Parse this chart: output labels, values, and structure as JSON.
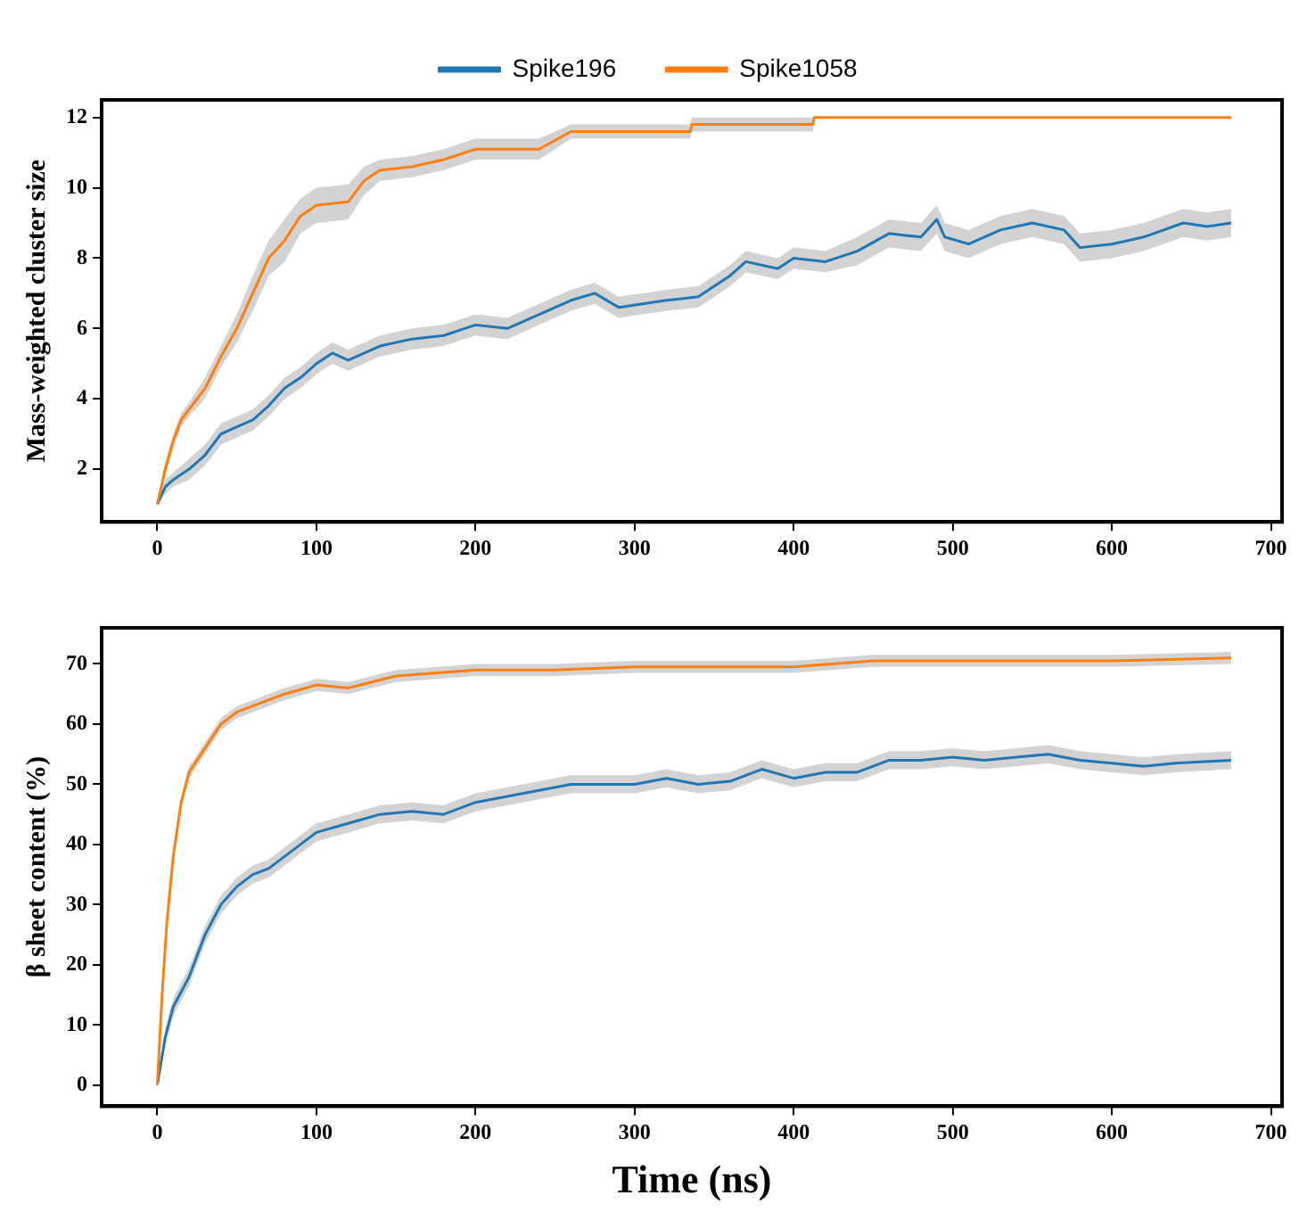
{
  "chart_data": [
    {
      "type": "line",
      "ylabel": "Mass-weighted cluster size",
      "legend": "top",
      "xlim": [
        -35,
        707
      ],
      "xticks": [
        0,
        100,
        200,
        300,
        400,
        500,
        600,
        700
      ],
      "ylim": [
        0.5,
        12.5
      ],
      "yticks": [
        2,
        4,
        6,
        8,
        10,
        12
      ],
      "series": [
        {
          "name": "Spike196",
          "color": "#1f77b4",
          "x": [
            0,
            5,
            10,
            20,
            30,
            40,
            50,
            60,
            70,
            80,
            90,
            100,
            110,
            120,
            140,
            160,
            180,
            200,
            220,
            240,
            260,
            275,
            290,
            320,
            340,
            360,
            370,
            390,
            400,
            420,
            440,
            460,
            480,
            490,
            495,
            510,
            530,
            550,
            570,
            580,
            600,
            620,
            645,
            660,
            675
          ],
          "values": [
            1,
            1.5,
            1.7,
            2.0,
            2.4,
            3.0,
            3.2,
            3.4,
            3.8,
            4.3,
            4.6,
            5.0,
            5.3,
            5.1,
            5.5,
            5.7,
            5.8,
            6.1,
            6.0,
            6.4,
            6.8,
            7.0,
            6.6,
            6.8,
            6.9,
            7.5,
            7.9,
            7.7,
            8.0,
            7.9,
            8.2,
            8.7,
            8.6,
            9.1,
            8.6,
            8.4,
            8.8,
            9.0,
            8.8,
            8.3,
            8.4,
            8.6,
            9.0,
            8.9,
            9.0
          ],
          "lower": [
            1,
            1.3,
            1.5,
            1.7,
            2.1,
            2.7,
            2.9,
            3.1,
            3.5,
            4.0,
            4.3,
            4.7,
            5.0,
            4.8,
            5.2,
            5.4,
            5.5,
            5.8,
            5.7,
            6.1,
            6.5,
            6.7,
            6.3,
            6.5,
            6.6,
            7.2,
            7.6,
            7.4,
            7.7,
            7.6,
            7.8,
            8.3,
            8.2,
            8.7,
            8.2,
            8.0,
            8.4,
            8.6,
            8.4,
            7.9,
            8.0,
            8.2,
            8.6,
            8.5,
            8.6
          ],
          "upper": [
            1,
            1.7,
            1.9,
            2.3,
            2.7,
            3.3,
            3.5,
            3.7,
            4.1,
            4.6,
            4.9,
            5.3,
            5.6,
            5.4,
            5.8,
            6.0,
            6.1,
            6.4,
            6.3,
            6.7,
            7.1,
            7.3,
            6.9,
            7.1,
            7.2,
            7.8,
            8.2,
            8.0,
            8.3,
            8.2,
            8.6,
            9.1,
            9.0,
            9.5,
            9.0,
            8.8,
            9.2,
            9.4,
            9.2,
            8.7,
            8.8,
            9.0,
            9.4,
            9.3,
            9.4
          ]
        },
        {
          "name": "Spike1058",
          "color": "#ff7f0e",
          "x": [
            0,
            5,
            10,
            15,
            20,
            30,
            40,
            50,
            60,
            70,
            80,
            90,
            100,
            120,
            130,
            140,
            160,
            180,
            200,
            240,
            260,
            335,
            336,
            412,
            413,
            675
          ],
          "values": [
            1,
            2.0,
            2.8,
            3.4,
            3.7,
            4.3,
            5.2,
            6.0,
            7.0,
            8.0,
            8.5,
            9.2,
            9.5,
            9.6,
            10.2,
            10.5,
            10.6,
            10.8,
            11.1,
            11.1,
            11.6,
            11.6,
            11.8,
            11.8,
            12,
            12
          ],
          "lower": [
            1,
            1.8,
            2.6,
            3.2,
            3.5,
            4.0,
            4.9,
            5.6,
            6.5,
            7.5,
            7.9,
            8.7,
            9.0,
            9.1,
            9.8,
            10.2,
            10.3,
            10.5,
            10.8,
            10.8,
            11.4,
            11.4,
            11.6,
            11.6,
            12,
            12
          ],
          "upper": [
            1,
            2.2,
            3.0,
            3.6,
            3.9,
            4.6,
            5.5,
            6.4,
            7.5,
            8.5,
            9.1,
            9.7,
            10.0,
            10.1,
            10.6,
            10.8,
            10.9,
            11.1,
            11.4,
            11.4,
            11.8,
            11.8,
            12.0,
            12.0,
            12,
            12
          ]
        }
      ]
    },
    {
      "type": "line",
      "xlabel": "Time (ns)",
      "ylabel": "β sheet content (%)",
      "xlim": [
        -35,
        707
      ],
      "xticks": [
        0,
        100,
        200,
        300,
        400,
        500,
        600,
        700
      ],
      "ylim": [
        -3.5,
        76
      ],
      "yticks": [
        0,
        10,
        20,
        30,
        40,
        50,
        60,
        70
      ],
      "series": [
        {
          "color": "#1f77b4",
          "x": [
            0,
            5,
            10,
            20,
            30,
            40,
            50,
            60,
            70,
            80,
            90,
            100,
            120,
            140,
            160,
            180,
            200,
            220,
            240,
            260,
            280,
            300,
            320,
            340,
            360,
            380,
            400,
            420,
            440,
            460,
            480,
            500,
            520,
            540,
            560,
            580,
            600,
            620,
            640,
            675
          ],
          "values": [
            0,
            8,
            13,
            18,
            25,
            30,
            33,
            35,
            36,
            38,
            40,
            42,
            43.5,
            45,
            45.5,
            45,
            47,
            48,
            49,
            50,
            50,
            50,
            51,
            50,
            50.5,
            52.5,
            51,
            52,
            52,
            54,
            54,
            54.5,
            54,
            54.5,
            55,
            54,
            53.5,
            53,
            53.5,
            54
          ],
          "lower": [
            0,
            6.5,
            11.5,
            16.5,
            23.5,
            28.5,
            31.5,
            33.5,
            34.5,
            36.5,
            38.5,
            40.5,
            42,
            43.5,
            44,
            43.5,
            45.5,
            46.5,
            47.5,
            48.5,
            48.5,
            48.5,
            49.5,
            48.5,
            49,
            51,
            49.5,
            50.5,
            50.5,
            52.5,
            52.5,
            53,
            52.5,
            53,
            53.5,
            52.5,
            52,
            51.5,
            52,
            52.5
          ],
          "upper": [
            0,
            9.5,
            14.5,
            19.5,
            26.5,
            31.5,
            34.5,
            36.5,
            37.5,
            39.5,
            41.5,
            43.5,
            45,
            46.5,
            47,
            46.5,
            48.5,
            49.5,
            50.5,
            51.5,
            51.5,
            51.5,
            52.5,
            51.5,
            52,
            54,
            52.5,
            53.5,
            53.5,
            55.5,
            55.5,
            56,
            55.5,
            56,
            56.5,
            55.5,
            55,
            54.5,
            55,
            55.5
          ]
        },
        {
          "color": "#ff7f0e",
          "x": [
            0,
            3,
            6,
            10,
            15,
            20,
            30,
            40,
            50,
            60,
            80,
            100,
            120,
            150,
            200,
            250,
            300,
            350,
            400,
            450,
            500,
            550,
            600,
            675
          ],
          "values": [
            0,
            15,
            27,
            38,
            47,
            52,
            56,
            60,
            62,
            63,
            65,
            66.5,
            66,
            68,
            69,
            69,
            69.5,
            69.5,
            69.5,
            70.5,
            70.5,
            70.5,
            70.5,
            71
          ],
          "lower": [
            0,
            14,
            26,
            37,
            46,
            51,
            55,
            59,
            61,
            62,
            64,
            65.5,
            65,
            67,
            68,
            68,
            68.5,
            68.5,
            68.5,
            69.5,
            69.5,
            69.5,
            69.5,
            70
          ],
          "upper": [
            0,
            16,
            28,
            39,
            48,
            53,
            57,
            61,
            63,
            64,
            66,
            67.5,
            67,
            69,
            70,
            70,
            70.5,
            70.5,
            70.5,
            71.5,
            71.5,
            71.5,
            71.5,
            72
          ]
        }
      ]
    }
  ]
}
